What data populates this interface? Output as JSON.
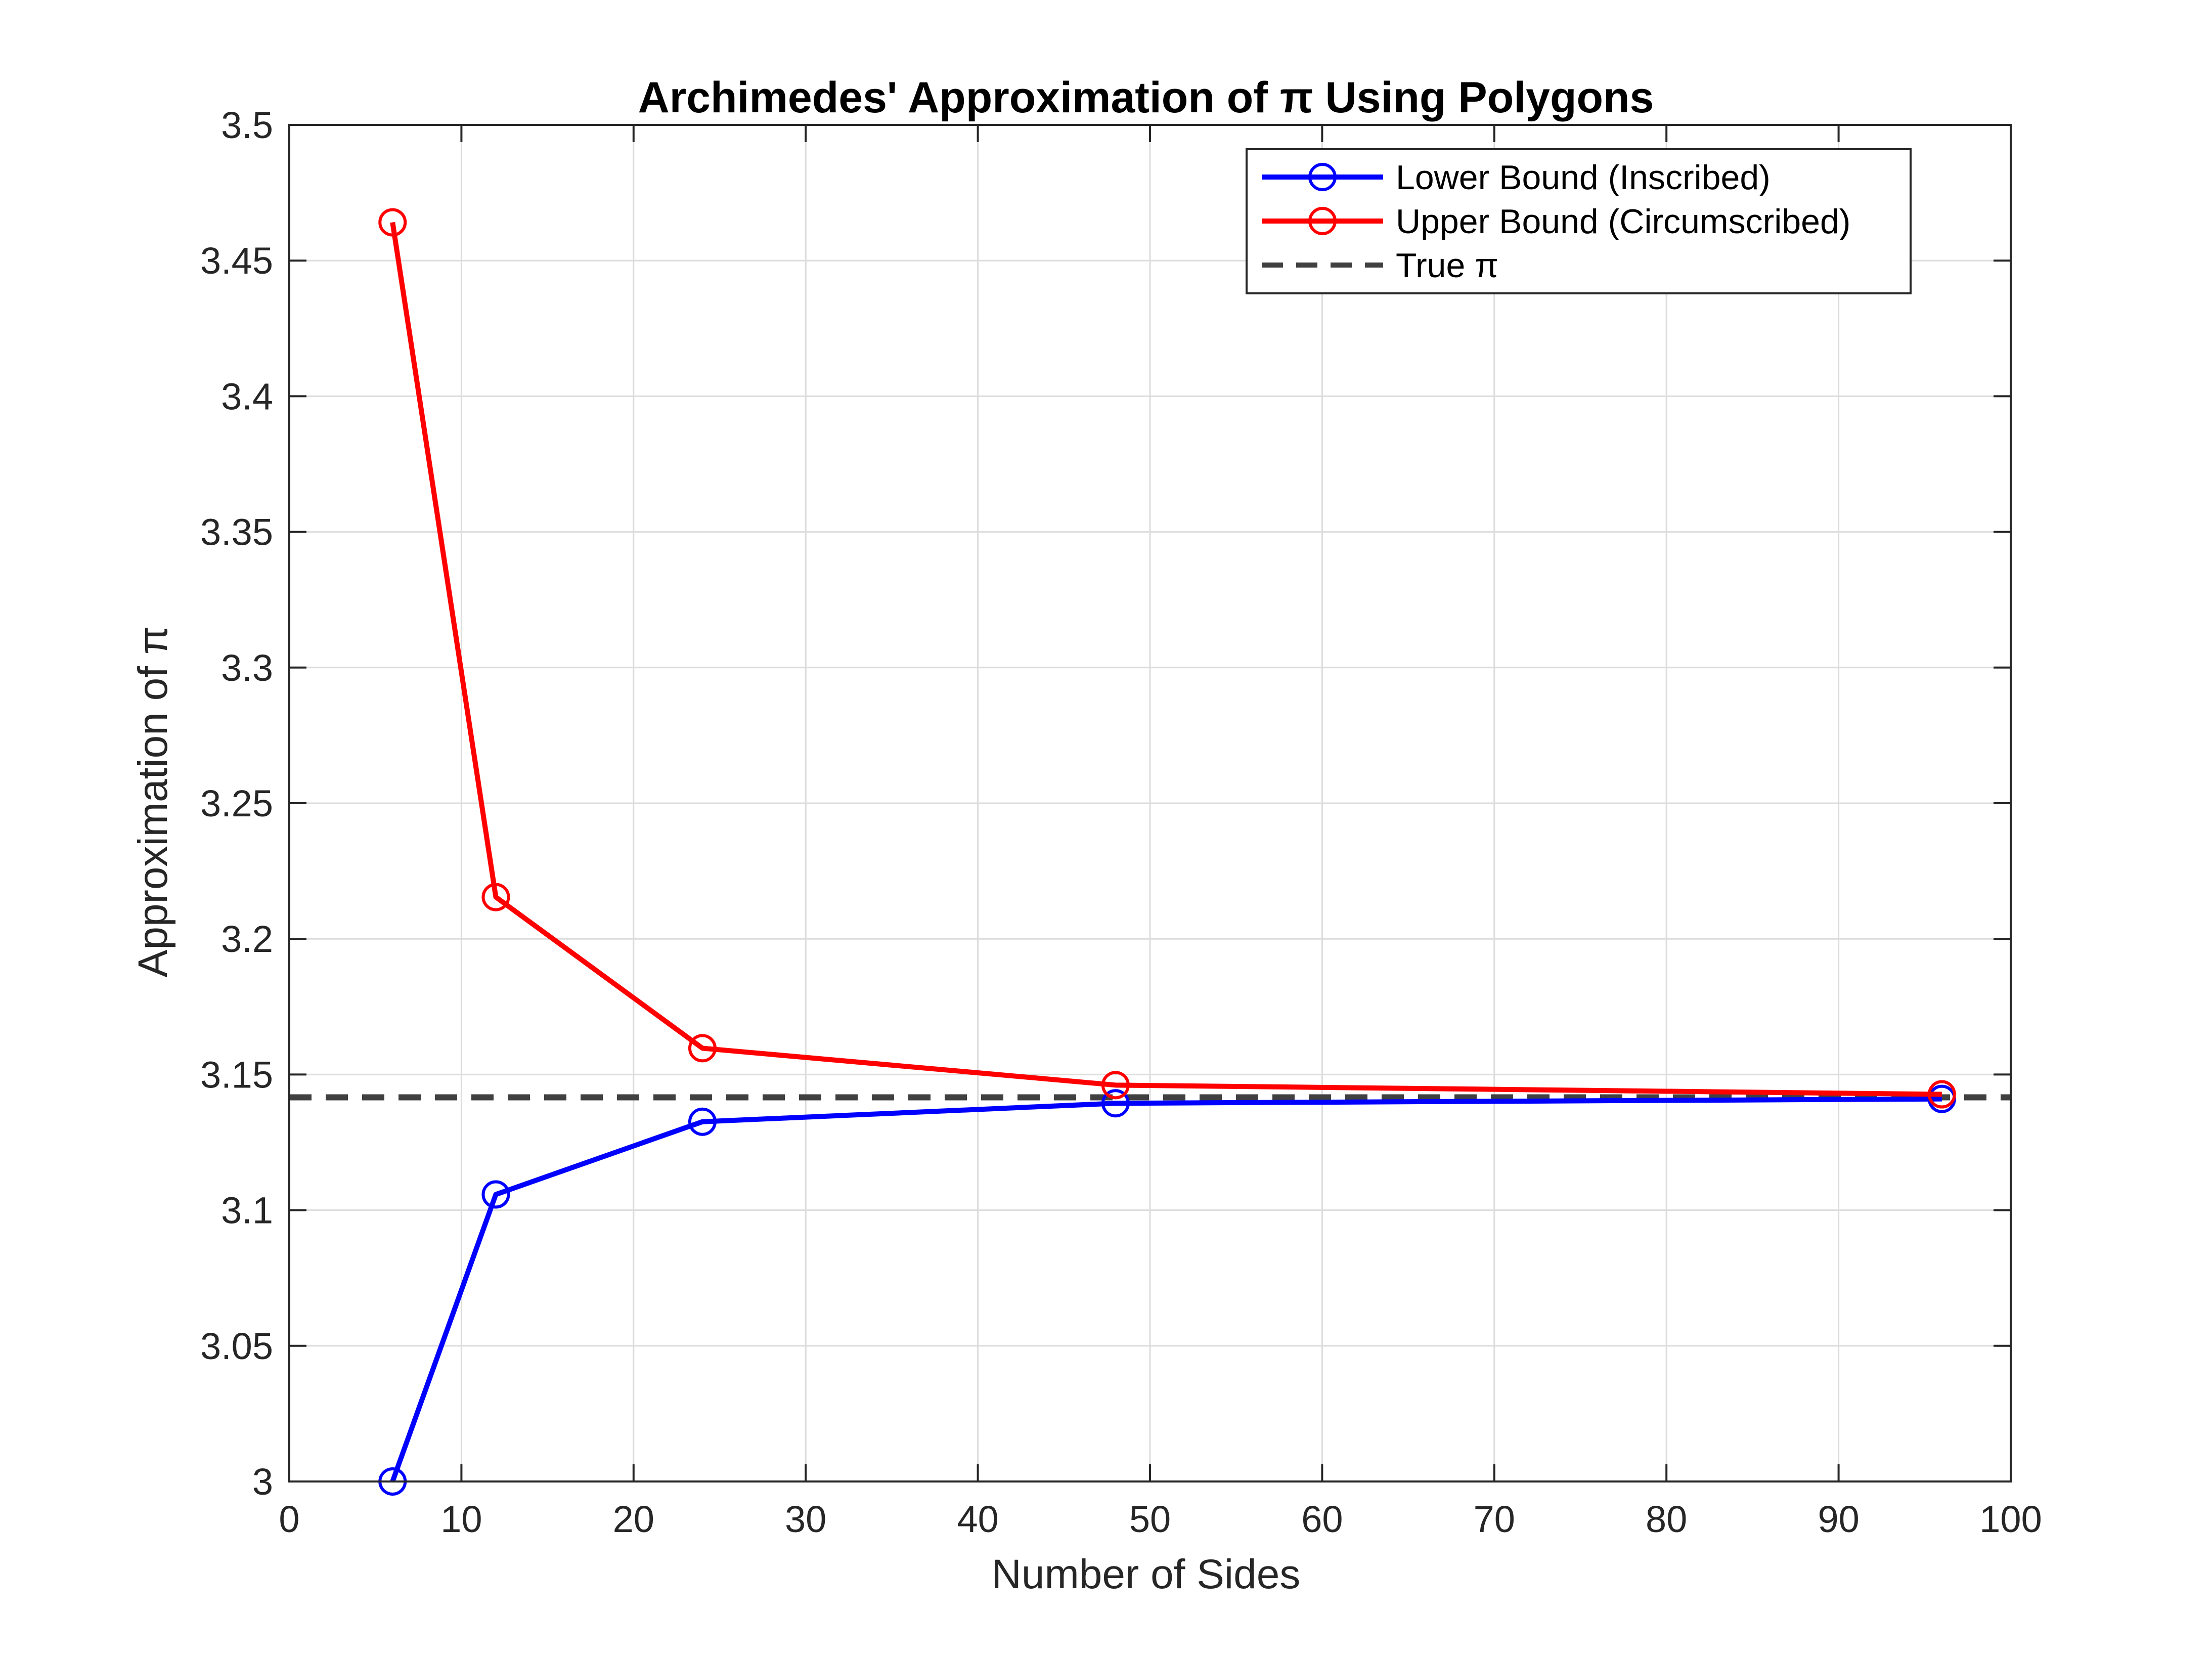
{
  "colors": {
    "lower": "#0000ff",
    "upper": "#ff0000",
    "true_pi": "#404040",
    "grid": "#dcdcdc",
    "axis": "#262626"
  },
  "chart_data": {
    "type": "line",
    "title": "Archimedes' Approximation of π Using Polygons",
    "xlabel": "Number of Sides",
    "ylabel": "Approximation of π",
    "xlim": [
      0,
      100
    ],
    "ylim": [
      3,
      3.5
    ],
    "x_ticks": [
      0,
      10,
      20,
      30,
      40,
      50,
      60,
      70,
      80,
      90,
      100
    ],
    "x_tick_labels": [
      "0",
      "10",
      "20",
      "30",
      "40",
      "50",
      "60",
      "70",
      "80",
      "90",
      "100"
    ],
    "y_ticks": [
      3,
      3.05,
      3.1,
      3.15,
      3.2,
      3.25,
      3.3,
      3.35,
      3.4,
      3.45,
      3.5
    ],
    "y_tick_labels": [
      "3",
      "3.05",
      "3.1",
      "3.15",
      "3.2",
      "3.25",
      "3.3",
      "3.35",
      "3.4",
      "3.45",
      "3.5"
    ],
    "grid": true,
    "legend_position": "top-right",
    "x": [
      6,
      12,
      24,
      48,
      96
    ],
    "series": [
      {
        "name": "Lower Bound (Inscribed)",
        "values": [
          3.0,
          3.1058,
          3.1326,
          3.1394,
          3.141
        ],
        "color": "#0000ff",
        "marker": "circle",
        "style": "solid"
      },
      {
        "name": "Upper Bound (Circumscribed)",
        "values": [
          3.4641,
          3.2154,
          3.1597,
          3.1461,
          3.1427
        ],
        "color": "#ff0000",
        "marker": "circle",
        "style": "solid"
      },
      {
        "name": "True π",
        "values": [
          3.14159,
          3.14159
        ],
        "x": [
          0,
          100
        ],
        "color": "#404040",
        "marker": "none",
        "style": "dashed"
      }
    ]
  }
}
